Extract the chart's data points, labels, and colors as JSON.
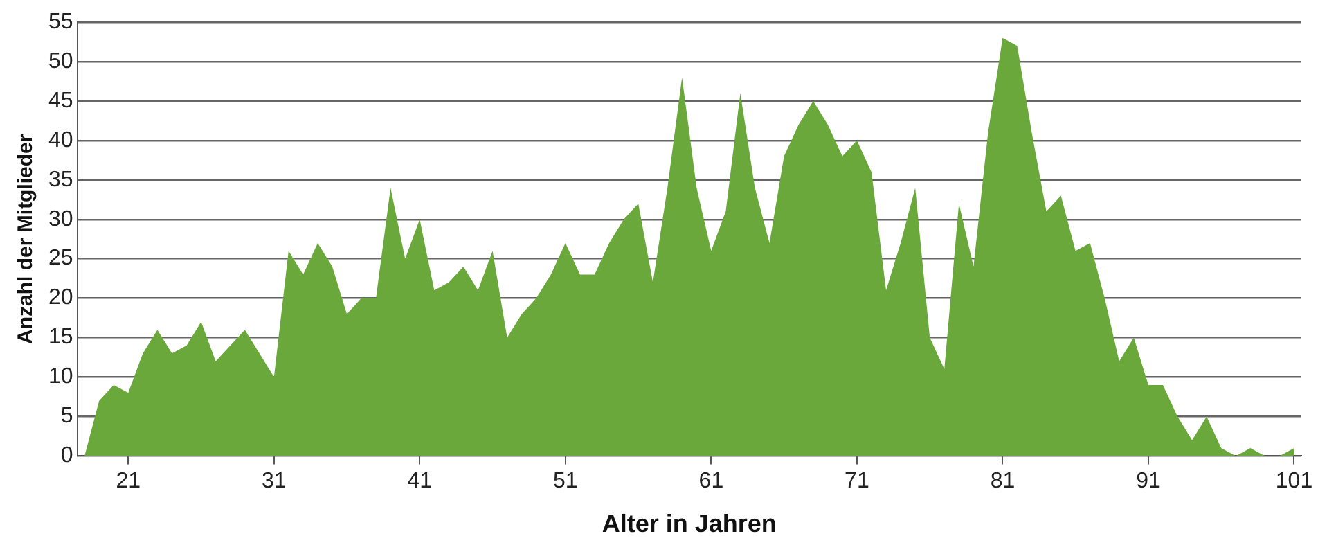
{
  "chart_data": {
    "type": "area",
    "xlabel": "Alter in Jahren",
    "ylabel": "Anzahl der Mitglieder",
    "x": [
      18,
      19,
      20,
      21,
      22,
      23,
      24,
      25,
      26,
      27,
      28,
      29,
      30,
      31,
      32,
      33,
      34,
      35,
      36,
      37,
      38,
      39,
      40,
      41,
      42,
      43,
      44,
      45,
      46,
      47,
      48,
      49,
      50,
      51,
      52,
      53,
      54,
      55,
      56,
      57,
      58,
      59,
      60,
      61,
      62,
      63,
      64,
      65,
      66,
      67,
      68,
      69,
      70,
      71,
      72,
      73,
      74,
      75,
      76,
      77,
      78,
      79,
      80,
      81,
      82,
      83,
      84,
      85,
      86,
      87,
      88,
      89,
      90,
      91,
      92,
      93,
      94,
      95,
      96,
      97,
      98,
      99,
      100,
      101
    ],
    "series": [
      {
        "color": "#6aa83c",
        "values": [
          0,
          7,
          9,
          8,
          13,
          16,
          13,
          14,
          17,
          12,
          14,
          16,
          13,
          10,
          26,
          23,
          27,
          24,
          18,
          20,
          20,
          34,
          25,
          30,
          21,
          22,
          24,
          21,
          26,
          15,
          18,
          20,
          23,
          27,
          23,
          23,
          27,
          30,
          32,
          22,
          34,
          48,
          34,
          26,
          31,
          46,
          34,
          27,
          38,
          42,
          45,
          42,
          38,
          40,
          36,
          21,
          27,
          34,
          15,
          11,
          32,
          24,
          41,
          53,
          52,
          41,
          31,
          33,
          26,
          27,
          20,
          12,
          15,
          9,
          9,
          5,
          2,
          5,
          1,
          0,
          1,
          0,
          0,
          1
        ]
      }
    ],
    "xlim": [
      17.5,
      101.5
    ],
    "xticks": [
      21,
      31,
      41,
      51,
      61,
      71,
      81,
      91,
      101
    ],
    "ylim": [
      0,
      55
    ],
    "yticks": [
      0,
      5,
      10,
      15,
      20,
      25,
      30,
      35,
      40,
      45,
      50,
      55
    ],
    "grid": "y",
    "legend": false
  }
}
